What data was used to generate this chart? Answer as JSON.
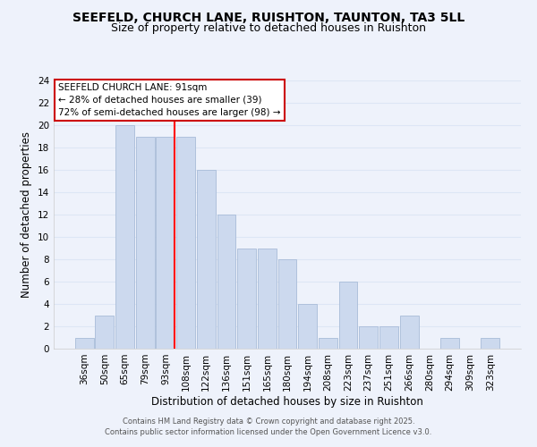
{
  "title": "SEEFELD, CHURCH LANE, RUISHTON, TAUNTON, TA3 5LL",
  "subtitle": "Size of property relative to detached houses in Ruishton",
  "xlabel": "Distribution of detached houses by size in Ruishton",
  "ylabel": "Number of detached properties",
  "bar_labels": [
    "36sqm",
    "50sqm",
    "65sqm",
    "79sqm",
    "93sqm",
    "108sqm",
    "122sqm",
    "136sqm",
    "151sqm",
    "165sqm",
    "180sqm",
    "194sqm",
    "208sqm",
    "223sqm",
    "237sqm",
    "251sqm",
    "266sqm",
    "280sqm",
    "294sqm",
    "309sqm",
    "323sqm"
  ],
  "bar_values": [
    1,
    3,
    20,
    19,
    19,
    19,
    16,
    12,
    9,
    9,
    8,
    4,
    1,
    6,
    2,
    2,
    3,
    0,
    1,
    0,
    1
  ],
  "bar_color": "#ccd9ee",
  "bar_edge_color": "#a8bcd8",
  "redline_index": 4,
  "ylim": [
    0,
    24
  ],
  "yticks": [
    0,
    2,
    4,
    6,
    8,
    10,
    12,
    14,
    16,
    18,
    20,
    22,
    24
  ],
  "annotation_box_title": "SEEFELD CHURCH LANE: 91sqm",
  "annotation_line1": "← 28% of detached houses are smaller (39)",
  "annotation_line2": "72% of semi-detached houses are larger (98) →",
  "annotation_box_color": "#ffffff",
  "annotation_box_edge": "#cc0000",
  "footer_line1": "Contains HM Land Registry data © Crown copyright and database right 2025.",
  "footer_line2": "Contains public sector information licensed under the Open Government Licence v3.0.",
  "background_color": "#eef2fb",
  "grid_color": "#dde6f5",
  "title_fontsize": 10,
  "subtitle_fontsize": 9,
  "axis_label_fontsize": 8.5,
  "tick_fontsize": 7.5,
  "footer_fontsize": 6.0
}
